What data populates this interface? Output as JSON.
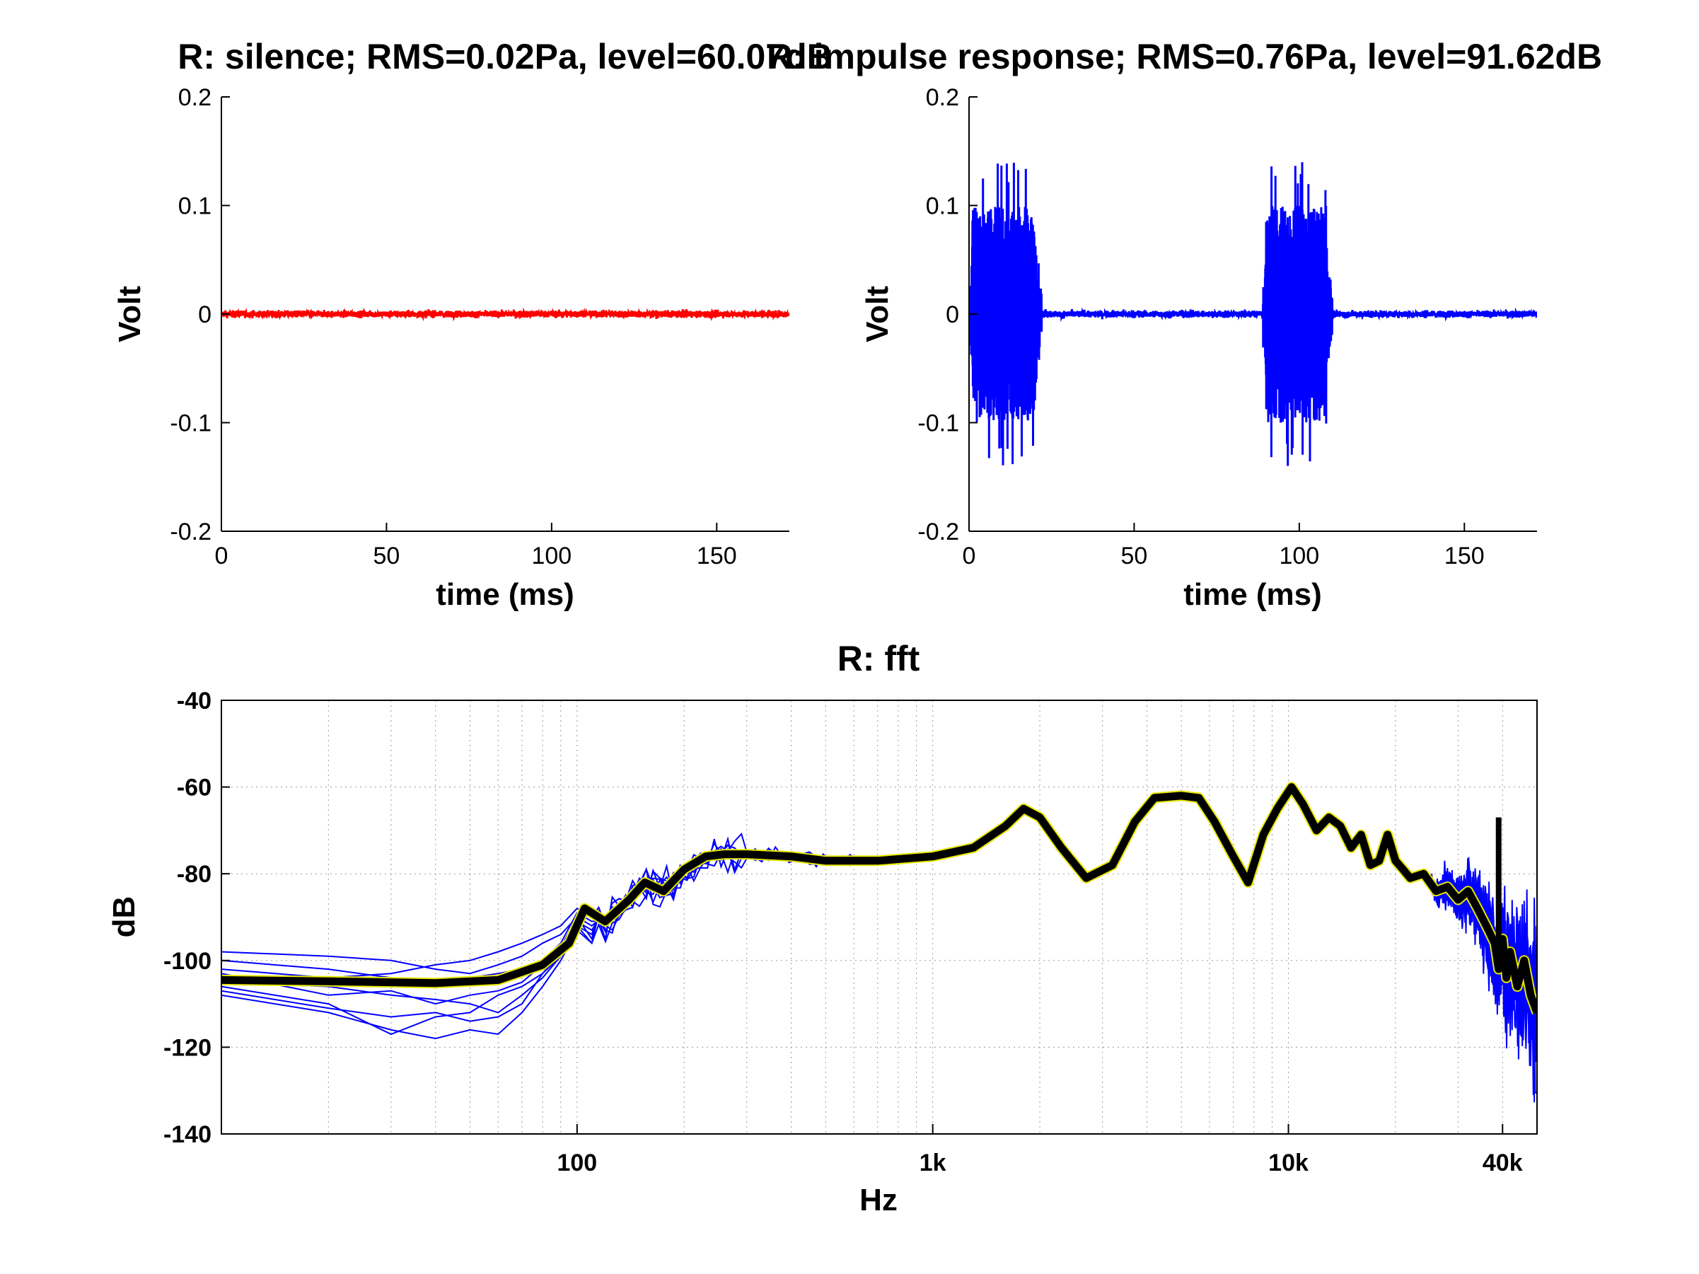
{
  "colors": {
    "silence": "#ff0000",
    "impulse": "#0000ff",
    "trial": "#0000ff",
    "mean": "#000000",
    "mean_outline": "#e6e600"
  },
  "chart_data": [
    {
      "type": "line",
      "title": "R: silence; RMS=0.02Pa, level=60.07dB",
      "xlabel": "time (ms)",
      "ylabel": "Volt",
      "xlim": [
        0,
        172
      ],
      "ylim": [
        -0.2,
        0.2
      ],
      "xticks": [
        0,
        50,
        100,
        150
      ],
      "yticks": [
        -0.2,
        -0.1,
        0,
        0.1,
        0.2
      ],
      "xtick_labels": [
        "0",
        "50",
        "100",
        "150"
      ],
      "ytick_labels": [
        "-0.2",
        "-0.1",
        "0",
        "0.1",
        "0.2"
      ],
      "grid": false,
      "series": [
        {
          "color": "#ff0000",
          "x": [
            0,
            172
          ],
          "y": [
            0,
            0
          ],
          "noise_amplitude": 0.003
        }
      ]
    },
    {
      "type": "line",
      "title": "R: impulse response; RMS=0.76Pa, level=91.62dB",
      "xlabel": "time (ms)",
      "ylabel": "Volt",
      "xlim": [
        0,
        172
      ],
      "ylim": [
        -0.2,
        0.2
      ],
      "xticks": [
        0,
        50,
        100,
        150
      ],
      "yticks": [
        -0.2,
        -0.1,
        0,
        0.1,
        0.2
      ],
      "xtick_labels": [
        "0",
        "50",
        "100",
        "150"
      ],
      "ytick_labels": [
        "-0.2",
        "-0.1",
        "0",
        "0.1",
        "0.2"
      ],
      "grid": false,
      "series": [
        {
          "color": "#0000ff",
          "bursts_ms": [
            [
              0,
              22
            ],
            [
              89,
              110
            ]
          ],
          "peak_amplitude": 0.14,
          "typical_amplitude": 0.1,
          "baseline_noise": 0.003
        }
      ]
    },
    {
      "type": "line",
      "title": "R: fft",
      "xlabel": "Hz",
      "ylabel": "dB",
      "xscale": "log",
      "xlim": [
        10,
        50000
      ],
      "ylim": [
        -140,
        -40
      ],
      "xticks": [
        100,
        1000,
        10000,
        40000
      ],
      "xtick_labels": [
        "100",
        "1k",
        "10k",
        "40k"
      ],
      "yticks": [
        -140,
        -120,
        -100,
        -80,
        -60,
        -40
      ],
      "ytick_labels": [
        "-140",
        "-120",
        "-100",
        "-80",
        "-60",
        "-40"
      ],
      "grid": true,
      "mean": {
        "x": [
          10,
          20,
          40,
          60,
          80,
          95,
          105,
          120,
          140,
          155,
          175,
          200,
          230,
          260,
          300,
          400,
          500,
          700,
          1000,
          1300,
          1600,
          1800,
          2000,
          2300,
          2700,
          3200,
          3700,
          4200,
          5000,
          5600,
          6200,
          7000,
          7700,
          8500,
          9300,
          10200,
          11000,
          12000,
          13000,
          14000,
          15000,
          16000,
          17000,
          18000,
          19000,
          20000,
          21000,
          22000,
          24000,
          26000,
          28000,
          30000,
          32000,
          34000,
          36000,
          38000,
          39000,
          40000,
          41000,
          42000,
          44000,
          46000,
          48000,
          50000
        ],
        "y": [
          -104.5,
          -104.8,
          -105.2,
          -104.5,
          -101,
          -96,
          -88,
          -91,
          -86,
          -82,
          -84,
          -79,
          -76,
          -75.5,
          -75.5,
          -76,
          -77,
          -77,
          -76,
          -74,
          -69,
          -65,
          -67,
          -74,
          -81,
          -78,
          -68,
          -62.5,
          -62,
          -62.5,
          -68,
          -76,
          -82,
          -71,
          -65,
          -60,
          -64,
          -70,
          -67,
          -69,
          -74,
          -71,
          -78,
          -77,
          -71,
          -77,
          -79,
          -81,
          -80,
          -84,
          -83,
          -86,
          -84,
          -88,
          -92,
          -96,
          -102,
          -95,
          -104,
          -98,
          -106,
          -100,
          -108,
          -112
        ]
      },
      "trials_low": {
        "x": [
          10,
          20,
          30,
          40,
          50,
          60,
          70,
          80,
          90,
          100,
          110
        ],
        "y": [
          [
            -98,
            -99,
            -100,
            -102,
            -103,
            -101,
            -99,
            -96,
            -94,
            -90,
            -92
          ],
          [
            -100,
            -102,
            -104,
            -105,
            -104,
            -103,
            -102,
            -100,
            -96,
            -89,
            -91
          ],
          [
            -102,
            -104,
            -103,
            -101,
            -100,
            -98,
            -96,
            -94,
            -92,
            -88,
            -90
          ],
          [
            -105,
            -106,
            -108,
            -109,
            -110,
            -112,
            -108,
            -104,
            -99,
            -92,
            -94
          ],
          [
            -107,
            -111,
            -113,
            -112,
            -114,
            -113,
            -110,
            -103,
            -98,
            -91,
            -93
          ],
          [
            -108,
            -112,
            -116,
            -118,
            -116,
            -117,
            -112,
            -106,
            -100,
            -93,
            -96
          ],
          [
            -103,
            -108,
            -107,
            -110,
            -108,
            -107,
            -105,
            -101,
            -97,
            -90,
            -95
          ],
          [
            -106,
            -110,
            -117,
            -113,
            -112,
            -108,
            -106,
            -103,
            -99,
            -92,
            -96
          ]
        ]
      }
    }
  ]
}
